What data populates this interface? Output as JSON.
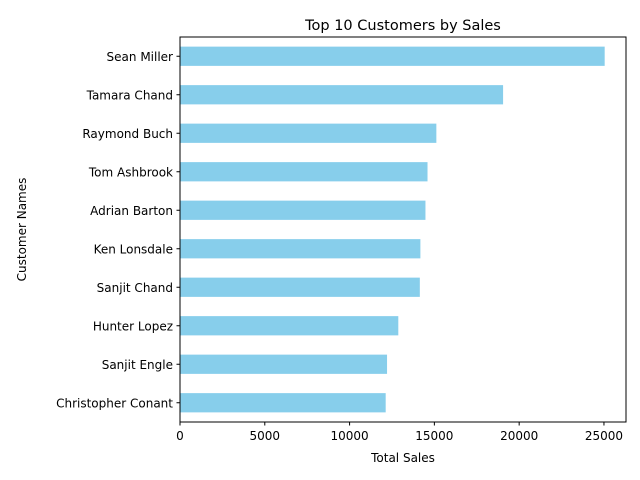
{
  "chart_data": {
    "type": "bar",
    "orientation": "horizontal",
    "title": "Top 10 Customers by Sales",
    "xlabel": "Total Sales",
    "ylabel": "Customer Names",
    "categories": [
      "Sean Miller",
      "Tamara Chand",
      "Raymond Buch",
      "Tom Ashbrook",
      "Adrian Barton",
      "Ken Lonsdale",
      "Sanjit Chand",
      "Hunter Lopez",
      "Sanjit Engle",
      "Christopher Conant"
    ],
    "values": [
      25043,
      19052,
      15117,
      14596,
      14474,
      14175,
      14142,
      12873,
      12209,
      12129
    ],
    "xlim": [
      0,
      26300
    ],
    "xticks": [
      0,
      5000,
      10000,
      15000,
      20000,
      25000
    ],
    "xtick_labels": [
      "0",
      "5000",
      "10000",
      "15000",
      "20000",
      "25000"
    ],
    "bar_color": "#87ceeb",
    "grid": false,
    "legend": "none"
  }
}
